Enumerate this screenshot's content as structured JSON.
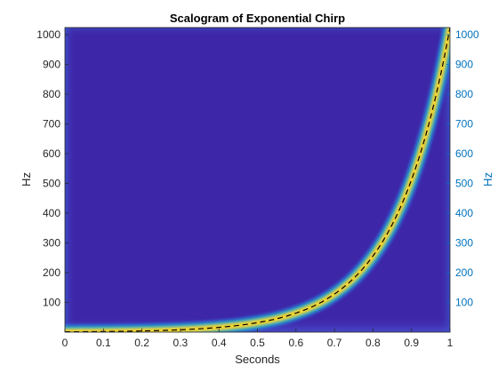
{
  "chart_data": {
    "type": "heatmap",
    "title": "Scalogram of Exponential Chirp",
    "xlabel": "Seconds",
    "ylabel": "Hz",
    "ylabel_right": "Hz",
    "xlim": [
      0,
      1
    ],
    "ylim": [
      0,
      1024
    ],
    "x_ticks": [
      0,
      0.1,
      0.2,
      0.3,
      0.4,
      0.5,
      0.6,
      0.7,
      0.8,
      0.9,
      1
    ],
    "x_tick_labels": [
      "0",
      "0.1",
      "0.2",
      "0.3",
      "0.4",
      "0.5",
      "0.6",
      "0.7",
      "0.8",
      "0.9",
      "1"
    ],
    "y_ticks": [
      100,
      200,
      300,
      400,
      500,
      600,
      700,
      800,
      900,
      1000
    ],
    "y_tick_labels": [
      "100",
      "200",
      "300",
      "400",
      "500",
      "600",
      "700",
      "800",
      "900",
      "1000"
    ],
    "y_tick_labels_right": [
      "100",
      "200",
      "300",
      "400",
      "500",
      "600",
      "700",
      "800",
      "900",
      "1000"
    ],
    "grid": false,
    "colormap": "parula",
    "colors": {
      "background": "#3e26a8",
      "ridge": "#f9d92b",
      "dashed_line": "#000000",
      "right_axis": "#0072BD"
    },
    "series": [
      {
        "style": "dashed",
        "x": [
          0,
          0.1,
          0.2,
          0.3,
          0.4,
          0.5,
          0.55,
          0.6,
          0.65,
          0.7,
          0.75,
          0.8,
          0.85,
          0.9,
          0.95,
          1
        ],
        "y": [
          1,
          2,
          4,
          8,
          16,
          32,
          45,
          64,
          90,
          128,
          181,
          256,
          362,
          512,
          724,
          1024
        ]
      }
    ]
  }
}
